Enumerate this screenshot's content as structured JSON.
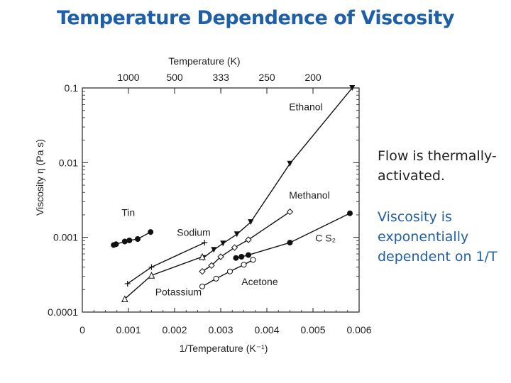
{
  "slide": {
    "title": "Temperature Dependence of Viscosity",
    "notes": [
      "Flow is thermally-activated.",
      "Viscosity is exponentially dependent on 1/T"
    ]
  },
  "chart_data": {
    "type": "scatter",
    "title": "",
    "xlabel": "1/Temperature (K⁻¹)",
    "ylabel": "Viscosity η (Pa s)",
    "top_axis_label": "Temperature (K)",
    "xlim": [
      0,
      0.006
    ],
    "ylim": [
      0.0001,
      0.1
    ],
    "y_scale": "log",
    "grid": false,
    "x_ticks": [
      {
        "value": 0,
        "label": "0"
      },
      {
        "value": 0.001,
        "label": "0.001"
      },
      {
        "value": 0.002,
        "label": "0.002"
      },
      {
        "value": 0.003,
        "label": "0.003"
      },
      {
        "value": 0.004,
        "label": "0.004"
      },
      {
        "value": 0.005,
        "label": "0.005"
      },
      {
        "value": 0.006,
        "label": "0.006"
      }
    ],
    "y_ticks": [
      {
        "value": 0.0001,
        "label": "0.0001"
      },
      {
        "value": 0.001,
        "label": "0.001"
      },
      {
        "value": 0.01,
        "label": "0.01"
      },
      {
        "value": 0.1,
        "label": "0.1"
      }
    ],
    "top_ticks": [
      {
        "value": 1000,
        "label": "1000"
      },
      {
        "value": 500,
        "label": "500"
      },
      {
        "value": 333,
        "label": "333"
      },
      {
        "value": 250,
        "label": "250"
      },
      {
        "value": 200,
        "label": "200"
      }
    ],
    "series": [
      {
        "name": "Ethanol",
        "marker": "triangle-down",
        "x": [
          0.00262,
          0.00285,
          0.00305,
          0.00335,
          0.00365,
          0.0045,
          0.00585
        ],
        "y": [
          0.00053,
          0.00068,
          0.00083,
          0.0011,
          0.0016,
          0.0097,
          0.1
        ],
        "label_at": [
          0.00448,
          0.05
        ]
      },
      {
        "name": "Methanol",
        "marker": "open-diamond",
        "x": [
          0.0026,
          0.0028,
          0.003,
          0.0033,
          0.0036,
          0.0045
        ],
        "y": [
          0.00035,
          0.00042,
          0.00055,
          0.00073,
          0.00093,
          0.0022
        ],
        "label_at": [
          0.00448,
          0.0033
        ]
      },
      {
        "name": "C S₂",
        "marker": "filled-circle",
        "x": [
          0.00333,
          0.00345,
          0.0036,
          0.0045,
          0.0058
        ],
        "y": [
          0.00053,
          0.00055,
          0.00058,
          0.00085,
          0.0021
        ],
        "label_at": [
          0.00505,
          0.00088
        ]
      },
      {
        "name": "Acetone",
        "marker": "open-circle",
        "x": [
          0.0026,
          0.0029,
          0.0032,
          0.0035,
          0.0037
        ],
        "y": [
          0.00022,
          0.00028,
          0.00035,
          0.00043,
          0.0005
        ],
        "label_at": [
          0.00345,
          0.00023
        ]
      },
      {
        "name": "Sodium",
        "marker": "plus",
        "x": [
          0.00098,
          0.0015,
          0.00265
        ],
        "y": [
          0.00024,
          0.0004,
          0.00085
        ],
        "label_at": [
          0.00205,
          0.00105
        ]
      },
      {
        "name": "Potassium",
        "marker": "open-triangle",
        "x": [
          0.00092,
          0.0015,
          0.0026
        ],
        "y": [
          0.00015,
          0.00031,
          0.00055
        ],
        "label_at": [
          0.00158,
          0.000168
        ]
      },
      {
        "name": "Tin",
        "marker": "filled-circle",
        "x": [
          0.00068,
          0.00073,
          0.00092,
          0.00102,
          0.0012,
          0.00148
        ],
        "y": [
          0.00079,
          0.00081,
          0.00088,
          0.00091,
          0.00095,
          0.00118
        ],
        "label_at": [
          0.00085,
          0.00194
        ]
      }
    ]
  }
}
